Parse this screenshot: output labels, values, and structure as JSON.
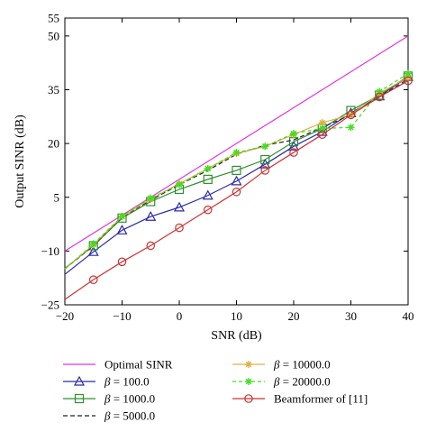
{
  "chart_data": {
    "type": "line",
    "xlabel": "SNR (dB)",
    "ylabel": "Output SINR (dB)",
    "xlim": [
      -20,
      40
    ],
    "ylim": [
      -25,
      55
    ],
    "xticks": [
      "−20",
      "−10",
      "0",
      "10",
      "20",
      "30",
      "40"
    ],
    "yticks": [
      "−25",
      "−10",
      "5",
      "20",
      "35",
      "50",
      "55"
    ],
    "xtick_values": [
      -20,
      -10,
      0,
      10,
      20,
      30,
      40
    ],
    "ytick_values": [
      -25,
      -10,
      5,
      20,
      35,
      50,
      55
    ],
    "grid": false,
    "legend_placement": "below",
    "series": [
      {
        "name": "Optimal SINR",
        "legend_prefix": "",
        "legend_value": "Optimal SINR",
        "color": "#e033e0",
        "dash": "",
        "marker": "none",
        "x": [
          -20,
          40
        ],
        "y": [
          -10,
          50
        ]
      },
      {
        "name": "β = 100.0",
        "legend_prefix": "β",
        "legend_value": " = 100.0",
        "color": "#2a2aa8",
        "dash": "",
        "marker": "triangle",
        "x": [
          -20,
          -15,
          -10,
          -5,
          0,
          5,
          10,
          15,
          20,
          25,
          30,
          35,
          40
        ],
        "y": [
          -16.5,
          -10.2,
          -4.2,
          -0.4,
          2.2,
          5.5,
          9.5,
          14.2,
          19.2,
          23.3,
          28.5,
          33.2,
          38.6
        ]
      },
      {
        "name": "β = 1000.0",
        "legend_prefix": "β",
        "legend_value": " = 1000.0",
        "color": "#2f8f2f",
        "dash": "",
        "marker": "square",
        "x": [
          -20,
          -15,
          -10,
          -5,
          0,
          5,
          10,
          15,
          20,
          25,
          30,
          35,
          40
        ],
        "y": [
          -14.8,
          -8.5,
          -0.8,
          3.8,
          7.2,
          10,
          12.5,
          15.5,
          20.5,
          24.2,
          29.2,
          33.5,
          38.8
        ]
      },
      {
        "name": "β = 5000.0",
        "legend_prefix": "β",
        "legend_value": " = 5000.0",
        "color": "#222222",
        "dash": "5,3",
        "marker": "none",
        "x": [
          -20,
          -15,
          -10,
          -5,
          0,
          5,
          10,
          15,
          20,
          25,
          30,
          35,
          40
        ],
        "y": [
          -15,
          -8.5,
          -0.5,
          4.2,
          8.5,
          12.5,
          17,
          19.5,
          21,
          24.5,
          28,
          33,
          38
        ]
      },
      {
        "name": "β = 10000.0",
        "legend_prefix": "β",
        "legend_value": " = 10000.0",
        "color": "#e0b040",
        "dash": "",
        "marker": "star",
        "x": [
          -20,
          -15,
          -10,
          -5,
          0,
          5,
          10,
          15,
          20,
          25,
          30,
          35,
          40
        ],
        "y": [
          -15,
          -8.2,
          -0.4,
          4.5,
          8.8,
          13,
          17.2,
          19.2,
          22.5,
          25.8,
          28,
          34,
          38.5
        ]
      },
      {
        "name": "β = 20000.0",
        "legend_prefix": "β",
        "legend_value": " = 20000.0",
        "color": "#44dd22",
        "dash": "4,3",
        "marker": "star",
        "x": [
          -20,
          -15,
          -10,
          -5,
          0,
          5,
          10,
          15,
          20,
          25,
          30,
          35,
          40
        ],
        "y": [
          -15,
          -8,
          -0.3,
          4.8,
          8.5,
          13,
          17.5,
          19.2,
          22.8,
          24.2,
          24.5,
          34.5,
          39.5
        ]
      },
      {
        "name": "Beamformer of [11]",
        "legend_prefix": "",
        "legend_value": "Beamformer of [11]",
        "color": "#cc3333",
        "dash": "",
        "marker": "circle",
        "x": [
          -20,
          -15,
          -10,
          -5,
          0,
          5,
          10,
          15,
          20,
          25,
          30,
          35,
          40
        ],
        "y": [
          -23.5,
          -18,
          -13,
          -8.5,
          -3.5,
          1.5,
          6.5,
          12.5,
          17.5,
          22.5,
          28,
          33,
          37.5
        ]
      }
    ]
  }
}
